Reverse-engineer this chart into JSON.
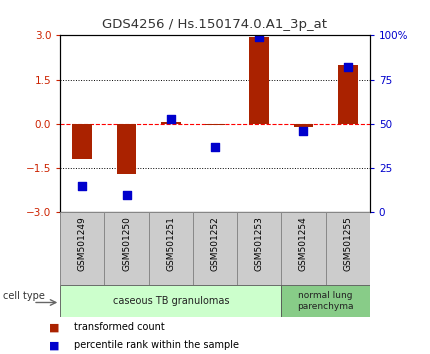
{
  "title": "GDS4256 / Hs.150174.0.A1_3p_at",
  "samples": [
    "GSM501249",
    "GSM501250",
    "GSM501251",
    "GSM501252",
    "GSM501253",
    "GSM501254",
    "GSM501255"
  ],
  "transformed_count": [
    -1.2,
    -1.7,
    0.05,
    -0.05,
    2.95,
    -0.1,
    2.0
  ],
  "percentile_rank": [
    15,
    10,
    53,
    37,
    99,
    46,
    82
  ],
  "ylim_left": [
    -3,
    3
  ],
  "ylim_right": [
    0,
    100
  ],
  "yticks_left": [
    -3,
    -1.5,
    0,
    1.5,
    3
  ],
  "yticks_right": [
    0,
    25,
    50,
    75,
    100
  ],
  "yticklabels_right": [
    "0",
    "25",
    "50",
    "75",
    "100%"
  ],
  "bar_color": "#aa2200",
  "dot_color": "#0000cc",
  "bar_width": 0.45,
  "dot_size": 40,
  "cell_type_group1_label": "caseous TB granulomas",
  "cell_type_group1_color": "#ccffcc",
  "cell_type_group2_label": "normal lung\nparenchyma",
  "cell_type_group2_color": "#88cc88",
  "cell_type_label": "cell type",
  "legend_bar_label": "transformed count",
  "legend_dot_label": "percentile rank within the sample",
  "title_color": "#333333",
  "left_tick_color": "#cc2200",
  "right_tick_color": "#0000cc",
  "sample_box_color": "#cccccc",
  "sample_box_edge": "#888888"
}
